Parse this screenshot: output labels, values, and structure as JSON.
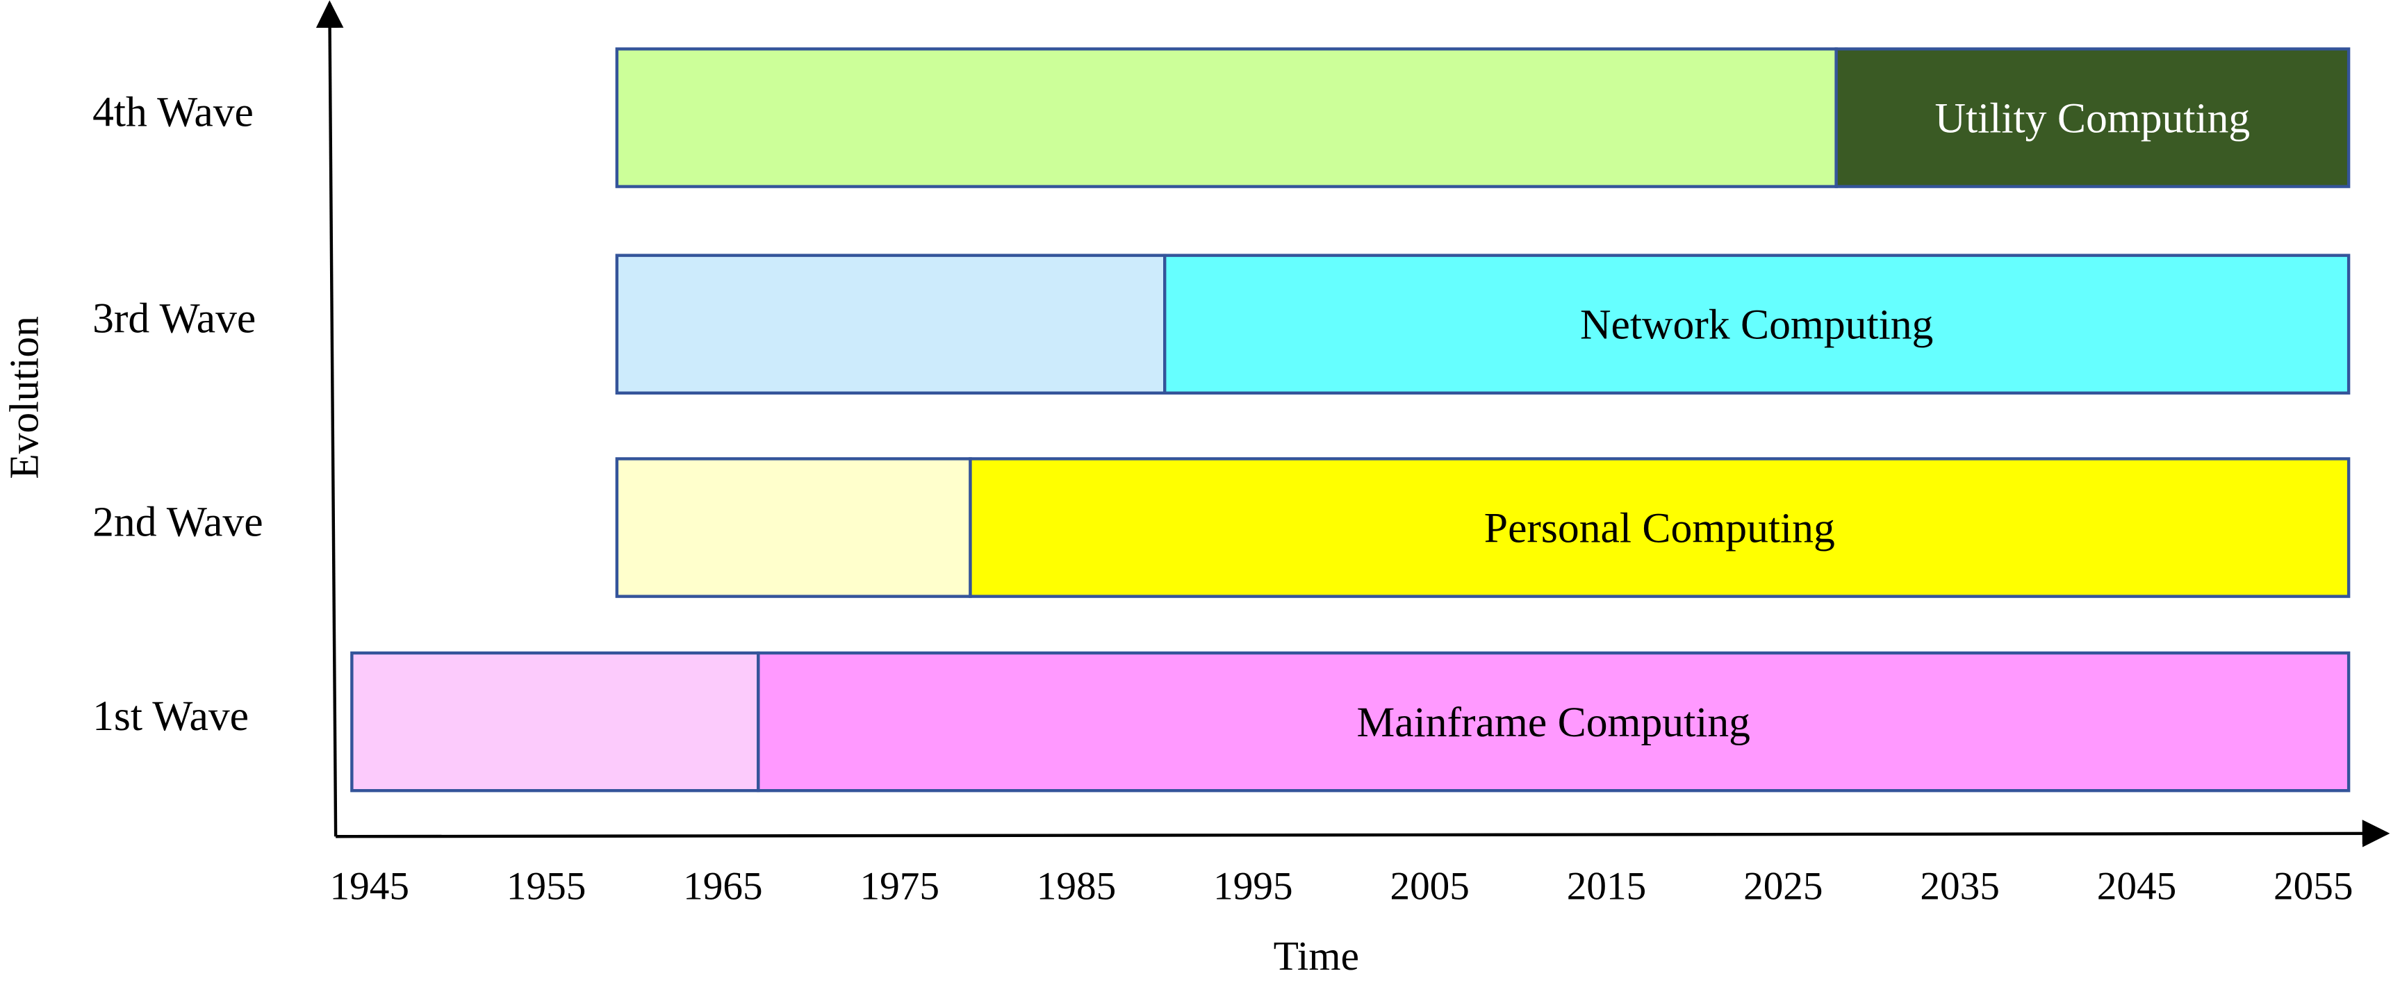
{
  "chart_data": {
    "type": "timeline",
    "x_label": "Time",
    "y_label": "Evolution",
    "xlim": [
      1943,
      2059
    ],
    "xticks": [
      1945,
      1955,
      1965,
      1975,
      1985,
      1995,
      2005,
      2015,
      2025,
      2035,
      2045,
      2055
    ],
    "border_color": "#34549a",
    "rows": [
      {
        "label": "1st Wave",
        "start": 1944,
        "transition": 1967,
        "end": 2057,
        "early_color": "#fccbfc",
        "late_color": "#ff99ff",
        "name": "Mainframe Computing",
        "name_color": "#000000"
      },
      {
        "label": "2nd Wave",
        "start": 1959,
        "transition": 1979,
        "end": 2057,
        "early_color": "#ffffcc",
        "late_color": "#ffff00",
        "name": "Personal Computing",
        "name_color": "#000000"
      },
      {
        "label": "3rd Wave",
        "start": 1959,
        "transition": 1990,
        "end": 2057,
        "early_color": "#cdebfc",
        "late_color": "#66ffff",
        "name": "Network Computing",
        "name_color": "#000000"
      },
      {
        "label": "4th Wave",
        "start": 1959,
        "transition": 2028,
        "end": 2057,
        "early_color": "#ccff99",
        "late_color": "#3a5a24",
        "name": "Utility Computing",
        "name_color": "#ffffff"
      }
    ]
  }
}
